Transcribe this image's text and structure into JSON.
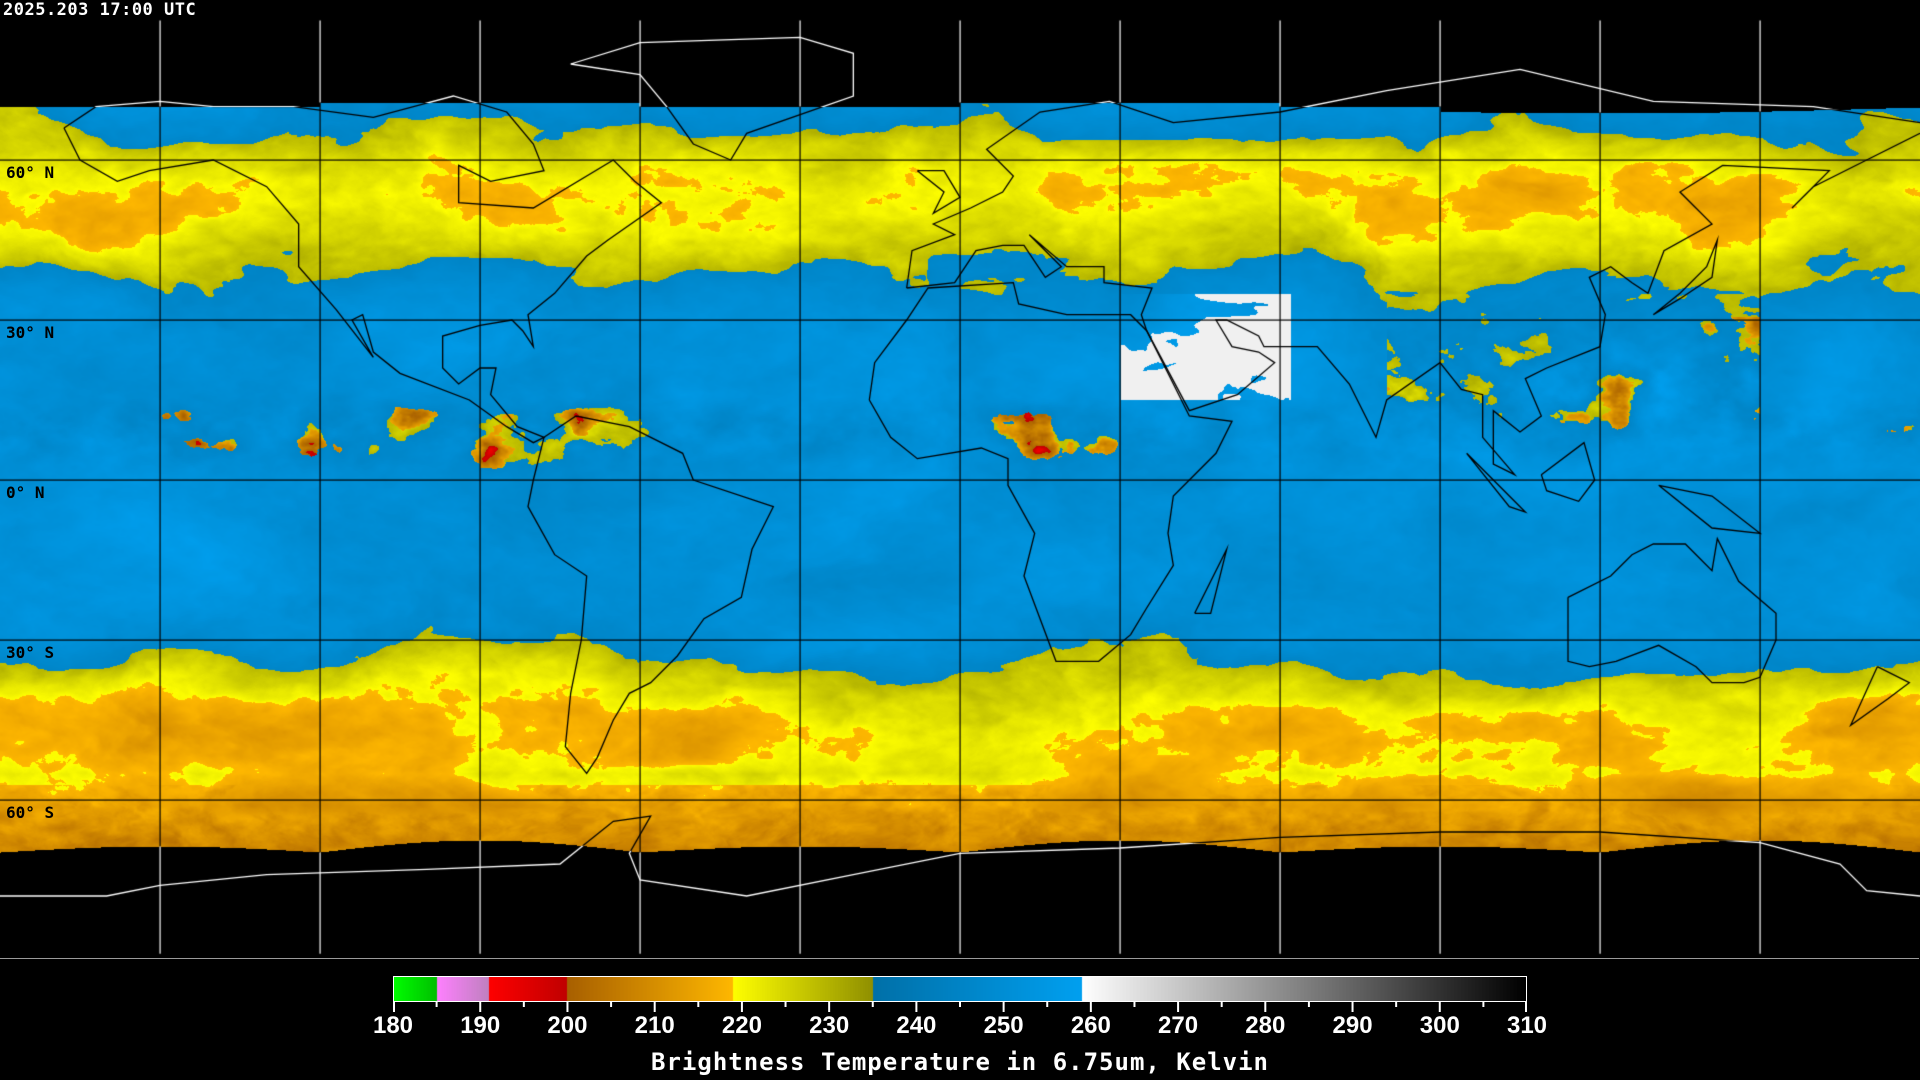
{
  "timestamp": "2025.203 17:00 UTC",
  "latitude_labels": [
    "60° N",
    "30° N",
    "0° N",
    "30° S",
    "60° S"
  ],
  "colorbar": {
    "title": "Brightness Temperature in 6.75um, Kelvin",
    "tick_labels": [
      "180",
      "190",
      "200",
      "210",
      "220",
      "230",
      "240",
      "250",
      "260",
      "270",
      "280",
      "290",
      "300",
      "310"
    ],
    "range": [
      180,
      310
    ],
    "segments": [
      {
        "from": 180,
        "to": 185,
        "start": "#00ff00",
        "end": "#00c000"
      },
      {
        "from": 185,
        "to": 191,
        "start": "#ff80ff",
        "end": "#c080c0"
      },
      {
        "from": 191,
        "to": 200,
        "start": "#ff0000",
        "end": "#c00000"
      },
      {
        "from": 200,
        "to": 219,
        "start": "#a86000",
        "end": "#ffb800"
      },
      {
        "from": 219,
        "to": 235,
        "start": "#ffff00",
        "end": "#909000"
      },
      {
        "from": 235,
        "to": 259,
        "start": "#0070a8",
        "end": "#00a0f0"
      },
      {
        "from": 259,
        "to": 310,
        "start": "#ffffff",
        "end": "#000000"
      }
    ]
  },
  "gridlines": {
    "longitude_step_deg": 30,
    "latitude_step_deg": 30
  },
  "colors": {
    "background": "#000000",
    "gridline_in_data": "#000000",
    "gridline_outside": "#ffffff",
    "coast_in_data": "#000000",
    "coast_outside": "#ffffff"
  }
}
